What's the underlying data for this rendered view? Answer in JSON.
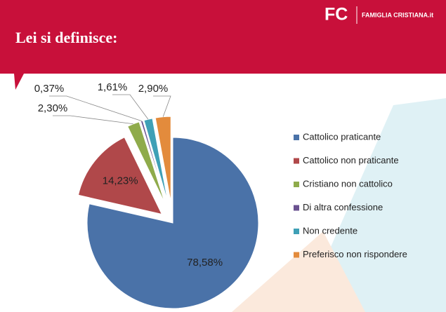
{
  "brand": {
    "mark": "FC",
    "name": "FAMIGLIA CRISTIANA.it"
  },
  "chart_data": {
    "type": "pie",
    "title": "Lei si definisce:",
    "categories": [
      "Cattolico praticante",
      "Cattolico non praticante",
      "Cristiano non cattolico",
      "Di altra confessione",
      "Non credente",
      "Preferisco non rispondere"
    ],
    "values": [
      78.58,
      14.23,
      2.3,
      0.37,
      1.61,
      2.9
    ],
    "value_labels": [
      "78,58%",
      "14,23%",
      "2,30%",
      "0,37%",
      "1,61%",
      "2,90%"
    ],
    "colors": [
      "#4a72a8",
      "#b0484a",
      "#8fab4b",
      "#6a5190",
      "#3fa0b6",
      "#e38b3c"
    ],
    "legend": "right"
  }
}
